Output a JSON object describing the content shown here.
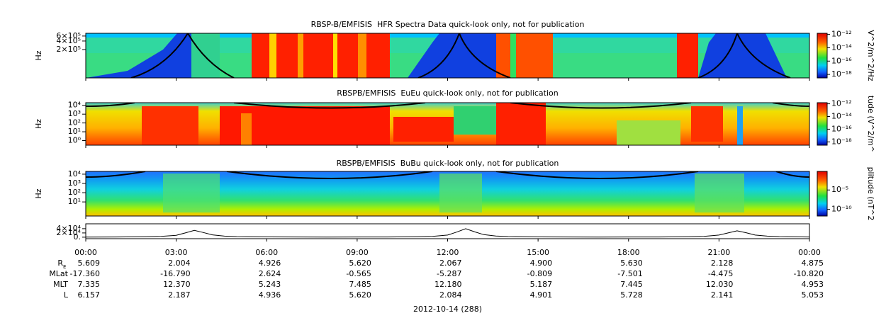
{
  "chart_data": [
    {
      "type": "spectrogram",
      "title": "RBSP-B/EMFISIS  HFR Spectra Data quick-look only, not for publication",
      "ylabel": "Hz",
      "log_y": true,
      "ylim": [
        20000,
        750000
      ],
      "yticks": [
        {
          "value": 600000,
          "label": "6×10⁵"
        },
        {
          "value": 400000,
          "label": "4×10⁵"
        },
        {
          "value": 200000,
          "label": "2×10⁵"
        }
      ],
      "colorbar_label": "V^2/m^2/Hz",
      "zlim": [
        3e-19,
        1.5e-12
      ],
      "zticks": [
        {
          "value": 1e-12,
          "label": "10⁻¹²"
        },
        {
          "value": 1e-14,
          "label": "10⁻¹⁴"
        },
        {
          "value": 1e-16,
          "label": "10⁻¹⁶"
        },
        {
          "value": 1e-18,
          "label": "10⁻¹⁸"
        }
      ]
    },
    {
      "type": "spectrogram",
      "title": "RBSPB/EMFISIS  EuEu quick-look only, not for publication",
      "ylabel": "Hz",
      "log_y": true,
      "ylim": [
        0.3,
        20000
      ],
      "yticks": [
        {
          "value": 10000,
          "label": "10⁴"
        },
        {
          "value": 1000,
          "label": "10³"
        },
        {
          "value": 100,
          "label": "10²"
        },
        {
          "value": 10,
          "label": "10¹"
        },
        {
          "value": 1,
          "label": "10⁰"
        }
      ],
      "colorbar_label": "tude (V^2/m^",
      "zlim": [
        3e-19,
        1.5e-12
      ],
      "zticks": [
        {
          "value": 1e-12,
          "label": "10⁻¹²"
        },
        {
          "value": 1e-14,
          "label": "10⁻¹⁴"
        },
        {
          "value": 1e-16,
          "label": "10⁻¹⁶"
        },
        {
          "value": 1e-18,
          "label": "10⁻¹⁸"
        }
      ]
    },
    {
      "type": "spectrogram",
      "title": "RBSPB/EMFISIS  BuBu quick-look only, not for publication",
      "ylabel": "Hz",
      "log_y": true,
      "ylim": [
        0.3,
        20000
      ],
      "yticks": [
        {
          "value": 10000,
          "label": "10⁴"
        },
        {
          "value": 1000,
          "label": "10³"
        },
        {
          "value": 100,
          "label": "10²"
        },
        {
          "value": 10,
          "label": "10¹"
        }
      ],
      "colorbar_label": "plitude (nT^2",
      "zlim": [
        2e-12,
        0.6
      ],
      "zticks": [
        {
          "value": 1e-05,
          "label": "10⁻⁵"
        },
        {
          "value": 1e-10,
          "label": "10⁻¹⁰"
        }
      ]
    },
    {
      "type": "line",
      "color": "#000000",
      "ylim": [
        -7000,
        63000
      ],
      "yticks": [
        {
          "value": 40000,
          "label": "4×10⁴"
        },
        {
          "value": 20000,
          "label": "2×10⁴"
        },
        {
          "value": 0,
          "label": "0."
        }
      ],
      "xlim": [
        0,
        24
      ],
      "xticks": [
        {
          "value": 0,
          "label": "00:00"
        },
        {
          "value": 3,
          "label": "03:00"
        },
        {
          "value": 6,
          "label": "06:00"
        },
        {
          "value": 9,
          "label": "09:00"
        },
        {
          "value": 12,
          "label": "12:00"
        },
        {
          "value": 15,
          "label": "15:00"
        },
        {
          "value": 18,
          "label": "18:00"
        },
        {
          "value": 21,
          "label": "21:00"
        },
        {
          "value": 24,
          "label": "00:00"
        }
      ],
      "x": [
        0,
        1,
        2,
        2.5,
        3,
        3.3,
        3.6,
        3.9,
        4.2,
        4.6,
        5,
        6,
        8,
        10,
        11,
        11.5,
        12,
        12.3,
        12.6,
        12.9,
        13.2,
        13.6,
        14,
        15,
        17,
        19,
        20,
        20.5,
        21,
        21.3,
        21.6,
        21.9,
        22.2,
        22.6,
        23,
        24
      ],
      "values": [
        600,
        800,
        2000,
        4000,
        9000,
        20000,
        32000,
        22000,
        11000,
        5000,
        2500,
        1200,
        700,
        900,
        2000,
        4000,
        10000,
        24000,
        40000,
        25000,
        12000,
        5500,
        3000,
        1200,
        700,
        900,
        2000,
        4000,
        10000,
        20000,
        30000,
        21000,
        10000,
        5000,
        2500,
        1000
      ]
    }
  ],
  "ephemeris": {
    "rows": [
      {
        "label": "R",
        "subscript": "E",
        "values": [
          "5.609",
          "2.004",
          "4.926",
          "5.620",
          "2.067",
          "4.900",
          "5.630",
          "2.128",
          "4.875"
        ]
      },
      {
        "label": "MLat",
        "values": [
          "-17.360",
          "-16.790",
          "2.624",
          "-0.565",
          "-5.287",
          "-0.809",
          "-7.501",
          "-4.475",
          "-10.820"
        ]
      },
      {
        "label": "MLT",
        "values": [
          "7.335",
          "12.370",
          "5.243",
          "7.485",
          "12.180",
          "5.187",
          "7.445",
          "12.030",
          "4.953"
        ]
      },
      {
        "label": "L",
        "values": [
          "6.157",
          "2.187",
          "4.936",
          "5.620",
          "2.084",
          "4.901",
          "5.728",
          "2.141",
          "5.053"
        ]
      }
    ]
  },
  "date": "2012-10-14 (288)"
}
